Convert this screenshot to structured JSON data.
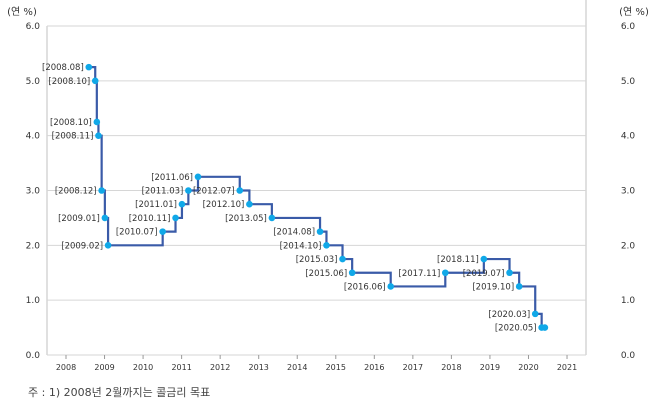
{
  "chart_data": {
    "type": "line",
    "step": true,
    "ylabel_left": "(연 %)",
    "ylabel_right": "(연 %)",
    "ylim": [
      0,
      6
    ],
    "yticks": [
      "0.0",
      "1.0",
      "2.0",
      "3.0",
      "4.0",
      "5.0",
      "6.0"
    ],
    "xlim": [
      2007.5,
      2021.5
    ],
    "xticks": [
      "2008",
      "2009",
      "2010",
      "2011",
      "2012",
      "2013",
      "2014",
      "2015",
      "2016",
      "2017",
      "2018",
      "2019",
      "2020",
      "2021"
    ],
    "grid": true,
    "colors": {
      "line": "#3a5ba8",
      "marker": "#10a8e8",
      "grid": "#d6d6d6"
    },
    "points": [
      {
        "label": "[2008.08]",
        "x": "2008.08",
        "y": 5.25
      },
      {
        "label": "[2008.10]",
        "x": "2008.10",
        "y": 5.0
      },
      {
        "label": "[2008.10]",
        "x": "2008.105",
        "y": 4.25
      },
      {
        "label": "[2008.11]",
        "x": "2008.11",
        "y": 4.0
      },
      {
        "label": "[2008.12]",
        "x": "2008.12",
        "y": 3.0
      },
      {
        "label": "[2009.01]",
        "x": "2009.01",
        "y": 2.5
      },
      {
        "label": "[2009.02]",
        "x": "2009.02",
        "y": 2.0
      },
      {
        "label": "[2010.07]",
        "x": "2010.07",
        "y": 2.25
      },
      {
        "label": "[2010.11]",
        "x": "2010.11",
        "y": 2.5
      },
      {
        "label": "[2011.01]",
        "x": "2011.01",
        "y": 2.75
      },
      {
        "label": "[2011.03]",
        "x": "2011.03",
        "y": 3.0
      },
      {
        "label": "[2011.06]",
        "x": "2011.06",
        "y": 3.25
      },
      {
        "label": "[2012.07]",
        "x": "2012.07",
        "y": 3.0
      },
      {
        "label": "[2012.10]",
        "x": "2012.10",
        "y": 2.75
      },
      {
        "label": "[2013.05]",
        "x": "2013.05",
        "y": 2.5
      },
      {
        "label": "[2014.08]",
        "x": "2014.08",
        "y": 2.25
      },
      {
        "label": "[2014.10]",
        "x": "2014.10",
        "y": 2.0
      },
      {
        "label": "[2015.03]",
        "x": "2015.03",
        "y": 1.75
      },
      {
        "label": "[2015.06]",
        "x": "2015.06",
        "y": 1.5
      },
      {
        "label": "[2016.06]",
        "x": "2016.06",
        "y": 1.25
      },
      {
        "label": "[2017.11]",
        "x": "2017.11",
        "y": 1.5
      },
      {
        "label": "[2018.11]",
        "x": "2018.11",
        "y": 1.75
      },
      {
        "label": "[2019.07]",
        "x": "2019.07",
        "y": 1.5
      },
      {
        "label": "[2019.10]",
        "x": "2019.10",
        "y": 1.25
      },
      {
        "label": "[2020.03]",
        "x": "2020.03",
        "y": 0.75
      },
      {
        "label": "[2020.05]",
        "x": "2020.05",
        "y": 0.5
      },
      {
        "label": "",
        "x": "2020.06",
        "y": 0.5
      }
    ]
  },
  "note": "주 : 1) 2008년 2월까지는 콜금리 목표"
}
